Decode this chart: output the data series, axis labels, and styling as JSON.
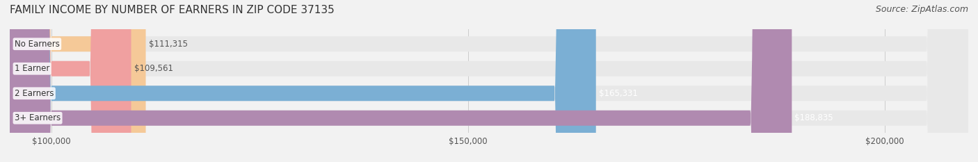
{
  "title": "FAMILY INCOME BY NUMBER OF EARNERS IN ZIP CODE 37135",
  "source": "Source: ZipAtlas.com",
  "categories": [
    "No Earners",
    "1 Earner",
    "2 Earners",
    "3+ Earners"
  ],
  "values": [
    111315,
    109561,
    165331,
    188835
  ],
  "bar_colors": [
    "#f5c998",
    "#f0a0a0",
    "#7bafd4",
    "#b08ab0"
  ],
  "label_colors": [
    "#555555",
    "#555555",
    "#ffffff",
    "#ffffff"
  ],
  "value_labels": [
    "$111,315",
    "$109,561",
    "$165,331",
    "$188,835"
  ],
  "xlim_min": 95000,
  "xlim_max": 210000,
  "xticks": [
    100000,
    150000,
    200000
  ],
  "xtick_labels": [
    "$100,000",
    "$150,000",
    "$200,000"
  ],
  "background_color": "#f2f2f2",
  "bar_background_color": "#e8e8e8",
  "title_fontsize": 11,
  "source_fontsize": 9,
  "bar_height": 0.62,
  "figsize": [
    14.06,
    2.33
  ],
  "dpi": 100
}
